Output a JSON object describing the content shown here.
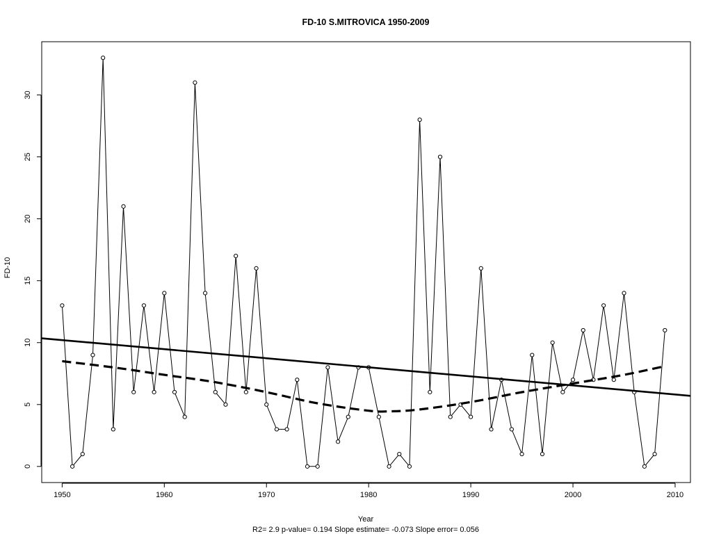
{
  "chart_data": {
    "type": "line",
    "title": "FD-10   S.MITROVICA 1950-2009",
    "xlabel": "Year",
    "ylabel": "FD-10",
    "xlim": [
      1948,
      2011.5
    ],
    "ylim": [
      -1.3,
      34.3
    ],
    "x_ticks": [
      1950,
      1960,
      1970,
      1980,
      1990,
      2000,
      2010
    ],
    "y_ticks": [
      0,
      5,
      10,
      15,
      20,
      25,
      30
    ],
    "grid": false,
    "x": [
      1950,
      1951,
      1952,
      1953,
      1954,
      1955,
      1956,
      1957,
      1958,
      1959,
      1960,
      1961,
      1962,
      1963,
      1964,
      1965,
      1966,
      1967,
      1968,
      1969,
      1970,
      1971,
      1972,
      1973,
      1974,
      1975,
      1976,
      1977,
      1978,
      1979,
      1980,
      1981,
      1982,
      1983,
      1984,
      1985,
      1986,
      1987,
      1988,
      1989,
      1990,
      1991,
      1992,
      1993,
      1994,
      1995,
      1996,
      1997,
      1998,
      1999,
      2000,
      2001,
      2002,
      2003,
      2004,
      2005,
      2006,
      2007,
      2008,
      2009
    ],
    "series": [
      {
        "style": "line-with-open-circles",
        "values": [
          13,
          0,
          1,
          9,
          33,
          3,
          21,
          6,
          13,
          6,
          14,
          6,
          4,
          31,
          14,
          6,
          5,
          17,
          6,
          16,
          5,
          3,
          3,
          7,
          0,
          0,
          8,
          2,
          4,
          8,
          8,
          4,
          0,
          1,
          0,
          28,
          6,
          25,
          4,
          5,
          4,
          16,
          3,
          7,
          3,
          1,
          9,
          1,
          10,
          6,
          7,
          11,
          7,
          13,
          7,
          14,
          6,
          0,
          1,
          11
        ]
      },
      {
        "style": "solid-thick",
        "note_values": "linear trend",
        "endpoints": {
          "x": [
            1948,
            2011.5
          ],
          "y": [
            10.35,
            5.7
          ]
        }
      },
      {
        "style": "dashed-thick",
        "x": [
          1950,
          1955,
          1960,
          1965,
          1970,
          1975,
          1980,
          1982,
          1985,
          1990,
          1995,
          2000,
          2005,
          2009
        ],
        "values": [
          8.5,
          8.0,
          7.4,
          6.8,
          6.0,
          5.1,
          4.5,
          4.45,
          4.6,
          5.2,
          6.0,
          6.7,
          7.4,
          8.1
        ]
      }
    ],
    "footer": "R2= 2.9  p-value= 0.194  Slope estimate= -0.073  Slope error= 0.056",
    "colors": {
      "background": "#ffffff",
      "ink": "#000000"
    }
  }
}
